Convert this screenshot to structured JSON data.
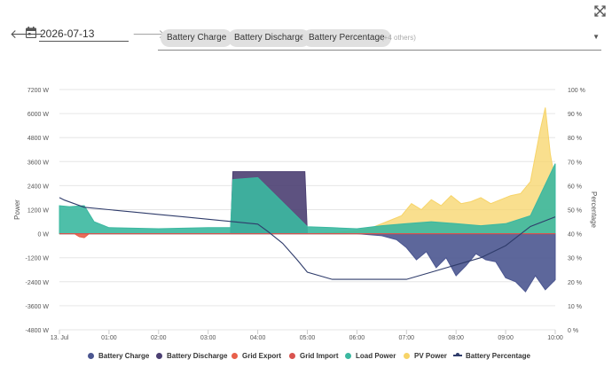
{
  "toolbar": {
    "prev_icon": "arrow-left-icon",
    "calendar_icon": "calendar-icon",
    "date_value": "2026-07-13",
    "next_icon": "arrow-right-icon",
    "expand_icon": "expand-icon",
    "selected_series": [
      "Battery Charge",
      "Battery Discharge",
      "Battery Percentage"
    ],
    "others_label": "(+4 others)",
    "dropdown_icon": "caret-down-icon"
  },
  "colors": {
    "battery_charge": "#4b5690",
    "battery_discharge": "#4b3f72",
    "grid_export": "#e8604a",
    "grid_import": "#d9534f",
    "load_power": "#3bb8a0",
    "pv_power": "#f7d468",
    "battery_percentage": "#2f3c6b"
  },
  "chart_data": {
    "type": "area",
    "ylabel": "Power",
    "y2label": "Percentage",
    "ylim": [
      -4800,
      7200
    ],
    "y2lim": [
      0,
      100
    ],
    "yticks": [
      "7200 W",
      "6000 W",
      "4800 W",
      "3600 W",
      "2400 W",
      "1200 W",
      "0 W",
      "-1200 W",
      "-2400 W",
      "-3600 W",
      "-4800 W"
    ],
    "y2ticks": [
      "100 %",
      "90 %",
      "80 %",
      "70 %",
      "60 %",
      "50 %",
      "40 %",
      "30 %",
      "20 %",
      "10 %",
      "0 %"
    ],
    "xticks": [
      "13. Jul",
      "01:00",
      "02:00",
      "03:00",
      "04:00",
      "05:00",
      "06:00",
      "07:00",
      "08:00",
      "09:00",
      "10:00"
    ],
    "xlim": [
      0,
      10
    ],
    "legend_position": "bottom",
    "grid": true,
    "series": [
      {
        "name": "Battery Charge",
        "x": [
          0,
          6,
          6.5,
          6.8,
          7.0,
          7.2,
          7.4,
          7.6,
          7.8,
          8.0,
          8.2,
          8.4,
          8.6,
          8.8,
          9.0,
          9.2,
          9.4,
          9.6,
          9.8,
          10.0
        ],
        "values": [
          0,
          0,
          -100,
          -300,
          -700,
          -1300,
          -900,
          -1700,
          -1200,
          -2100,
          -1600,
          -1000,
          -1300,
          -1400,
          -2200,
          -2400,
          -2900,
          -2100,
          -2800,
          -2300
        ]
      },
      {
        "name": "Battery Discharge",
        "x": [
          0,
          3.45,
          3.5,
          4.0,
          4.5,
          4.95,
          5.0,
          10
        ],
        "values": [
          0,
          0,
          3100,
          3100,
          3100,
          3100,
          0,
          0
        ]
      },
      {
        "name": "Grid Export",
        "x": [
          0,
          0.3,
          0.4,
          0.5,
          0.6,
          10
        ],
        "values": [
          0,
          0,
          -150,
          -200,
          0,
          0
        ]
      },
      {
        "name": "Grid Import",
        "x": [
          0,
          10
        ],
        "values": [
          0,
          0
        ]
      },
      {
        "name": "Load Power",
        "x": [
          0,
          0.2,
          0.5,
          0.7,
          1.0,
          2.0,
          3.0,
          3.45,
          3.5,
          4.0,
          5.0,
          5.5,
          6.0,
          6.5,
          7.0,
          7.5,
          8.0,
          8.5,
          9.0,
          9.5,
          10.0
        ],
        "values": [
          1400,
          1350,
          1400,
          600,
          300,
          250,
          300,
          300,
          2700,
          2800,
          350,
          300,
          250,
          400,
          500,
          600,
          500,
          400,
          500,
          900,
          3500
        ]
      },
      {
        "name": "PV Power",
        "x": [
          0,
          5.0,
          5.5,
          6.0,
          6.3,
          6.6,
          6.9,
          7.1,
          7.3,
          7.5,
          7.7,
          7.9,
          8.1,
          8.3,
          8.5,
          8.7,
          8.9,
          9.1,
          9.3,
          9.5,
          9.7,
          9.8,
          9.9,
          10.0
        ],
        "values": [
          0,
          0,
          50,
          150,
          300,
          600,
          900,
          1500,
          1200,
          1700,
          1400,
          1900,
          1500,
          1600,
          1800,
          1500,
          1700,
          1900,
          2000,
          2600,
          5200,
          6300,
          4000,
          2600
        ]
      },
      {
        "name": "Battery Percentage",
        "x": [
          0,
          0.1,
          0.5,
          1.0,
          1.5,
          2.0,
          2.5,
          3.0,
          3.5,
          4.0,
          4.2,
          4.5,
          4.8,
          5.0,
          5.5,
          6.0,
          6.5,
          7.0,
          7.5,
          8.0,
          8.5,
          9.0,
          9.5,
          10.0
        ],
        "values": [
          55,
          54,
          51,
          50,
          49,
          48,
          47,
          46,
          45,
          44,
          41,
          36,
          29,
          24,
          21,
          21,
          21,
          21,
          24,
          27,
          30,
          35,
          43,
          47
        ]
      }
    ]
  },
  "legend": [
    {
      "label": "Battery Charge",
      "marker": "dot",
      "color_key": "battery_charge"
    },
    {
      "label": "Battery Discharge",
      "marker": "dot",
      "color_key": "battery_discharge"
    },
    {
      "label": "Grid Export",
      "marker": "dot",
      "color_key": "grid_export"
    },
    {
      "label": "Grid Import",
      "marker": "dot",
      "color_key": "grid_import"
    },
    {
      "label": "Load Power",
      "marker": "dot",
      "color_key": "load_power"
    },
    {
      "label": "PV Power",
      "marker": "dot",
      "color_key": "pv_power"
    },
    {
      "label": "Battery Percentage",
      "marker": "line",
      "color_key": "battery_percentage"
    }
  ]
}
